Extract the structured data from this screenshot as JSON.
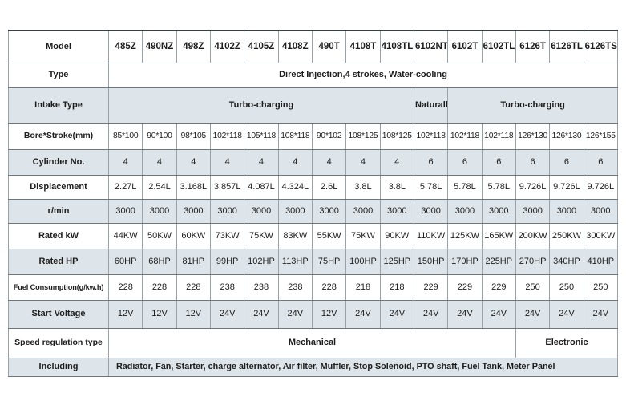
{
  "colors": {
    "row_shade": "#dee5ea",
    "grid_vertical": "#9aa1a7",
    "grid_horizontal": "#6d767d",
    "table_top_border": "#3a3f43",
    "text": "#1d1d1d",
    "background": "#ffffff"
  },
  "table": {
    "title": "diesel-engine-specifications",
    "column_count": 15,
    "rows": [
      {
        "key": "model",
        "header": "Model",
        "values": [
          "485Z",
          "490NZ",
          "498Z",
          "4102Z",
          "4105Z",
          "4108Z",
          "490T",
          "4108T",
          "4108TL",
          "6102NT",
          "6102T",
          "6102TL",
          "6126T",
          "6126TL",
          "6126TS"
        ]
      },
      {
        "key": "type",
        "header": "Type",
        "merged": [
          {
            "label": "Direct Injection,4 strokes, Water-cooling",
            "span": 15
          }
        ]
      },
      {
        "key": "intake",
        "header": "Intake Type",
        "merged": [
          {
            "label": "Turbo-charging",
            "span": 9
          },
          {
            "label": "Naturally",
            "span": 1
          },
          {
            "label": "Turbo-charging",
            "span": 5
          }
        ]
      },
      {
        "key": "bore_stroke",
        "header": "Bore*Stroke(mm)",
        "values": [
          "85*100",
          "90*100",
          "98*105",
          "102*118",
          "105*118",
          "108*118",
          "90*102",
          "108*125",
          "108*125",
          "102*118",
          "102*118",
          "102*118",
          "126*130",
          "126*130",
          "126*155"
        ]
      },
      {
        "key": "cylinder",
        "header": "Cylinder No.",
        "values": [
          "4",
          "4",
          "4",
          "4",
          "4",
          "4",
          "4",
          "4",
          "4",
          "6",
          "6",
          "6",
          "6",
          "6",
          "6"
        ]
      },
      {
        "key": "displacement",
        "header": "Displacement",
        "values": [
          "2.27L",
          "2.54L",
          "3.168L",
          "3.857L",
          "4.087L",
          "4.324L",
          "2.6L",
          "3.8L",
          "3.8L",
          "5.78L",
          "5.78L",
          "5.78L",
          "9.726L",
          "9.726L",
          "9.726L"
        ]
      },
      {
        "key": "rpm",
        "header": "r/min",
        "values": [
          "3000",
          "3000",
          "3000",
          "3000",
          "3000",
          "3000",
          "3000",
          "3000",
          "3000",
          "3000",
          "3000",
          "3000",
          "3000",
          "3000",
          "3000"
        ]
      },
      {
        "key": "rated_kw",
        "header": "Rated kW",
        "values": [
          "44KW",
          "50KW",
          "60KW",
          "73KW",
          "75KW",
          "83KW",
          "55KW",
          "75KW",
          "90KW",
          "110KW",
          "125KW",
          "165KW",
          "200KW",
          "250KW",
          "300KW"
        ]
      },
      {
        "key": "rated_hp",
        "header": "Rated HP",
        "values": [
          "60HP",
          "68HP",
          "81HP",
          "99HP",
          "102HP",
          "113HP",
          "75HP",
          "100HP",
          "125HP",
          "150HP",
          "170HP",
          "225HP",
          "270HP",
          "340HP",
          "410HP"
        ]
      },
      {
        "key": "fuel",
        "header": "Fuel Consumption(g/kw.h)",
        "values": [
          "228",
          "228",
          "228",
          "238",
          "238",
          "238",
          "228",
          "218",
          "218",
          "229",
          "229",
          "229",
          "250",
          "250",
          "250"
        ]
      },
      {
        "key": "voltage",
        "header": "Start Voltage",
        "values": [
          "12V",
          "12V",
          "12V",
          "24V",
          "24V",
          "24V",
          "12V",
          "24V",
          "24V",
          "24V",
          "24V",
          "24V",
          "24V",
          "24V",
          "24V"
        ]
      },
      {
        "key": "speed_regulation",
        "header": "Speed regulation type",
        "merged": [
          {
            "label": "Mechanical",
            "span": 12
          },
          {
            "label": "Electronic",
            "span": 3
          }
        ]
      },
      {
        "key": "including",
        "header": "Including",
        "merged": [
          {
            "label": "Radiator, Fan, Starter, charge alternator, Air filter, Muffler, Stop Solenoid, PTO shaft, Fuel Tank, Meter Panel",
            "span": 15
          }
        ]
      }
    ]
  }
}
